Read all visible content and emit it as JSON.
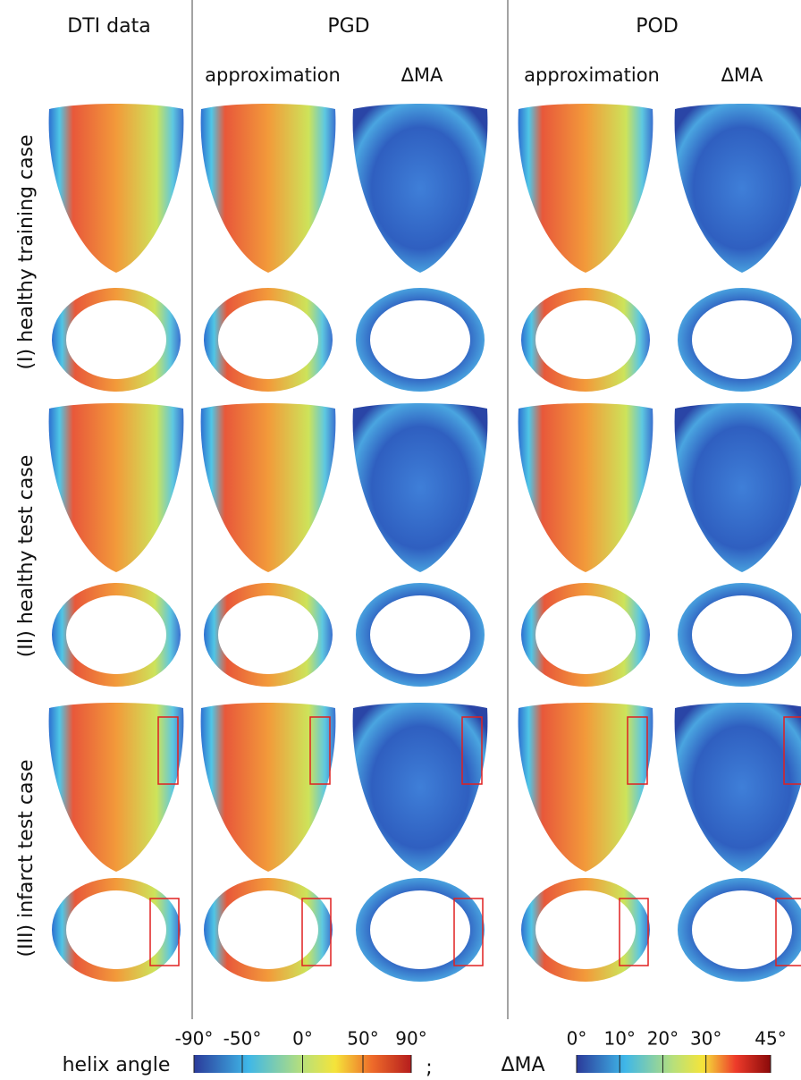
{
  "headers": {
    "dti": "DTI data",
    "pgd": "PGD",
    "pod": "POD"
  },
  "subheaders": [
    "approximation",
    "ΔMA",
    "approximation",
    "ΔMA"
  ],
  "row_labels": [
    "(I) healthy training case",
    "(II) healthy test case",
    "(III) infarct test case"
  ],
  "colorbars": [
    {
      "label": "helix angle",
      "range": [
        -90,
        90
      ],
      "ticks": [
        {
          "value": -90,
          "label": "-90°"
        },
        {
          "value": -50,
          "label": "-50°"
        },
        {
          "value": 0,
          "label": "0°"
        },
        {
          "value": 50,
          "label": "50°"
        },
        {
          "value": 90,
          "label": "90°"
        }
      ]
    },
    {
      "label": "ΔMA",
      "range": [
        0,
        45
      ],
      "ticks": [
        {
          "value": 0,
          "label": "0°"
        },
        {
          "value": 10,
          "label": "10°"
        },
        {
          "value": 20,
          "label": "20°"
        },
        {
          "value": 30,
          "label": "30°"
        },
        {
          "value": 45,
          "label": "45°"
        }
      ]
    }
  ],
  "separator": ";"
}
